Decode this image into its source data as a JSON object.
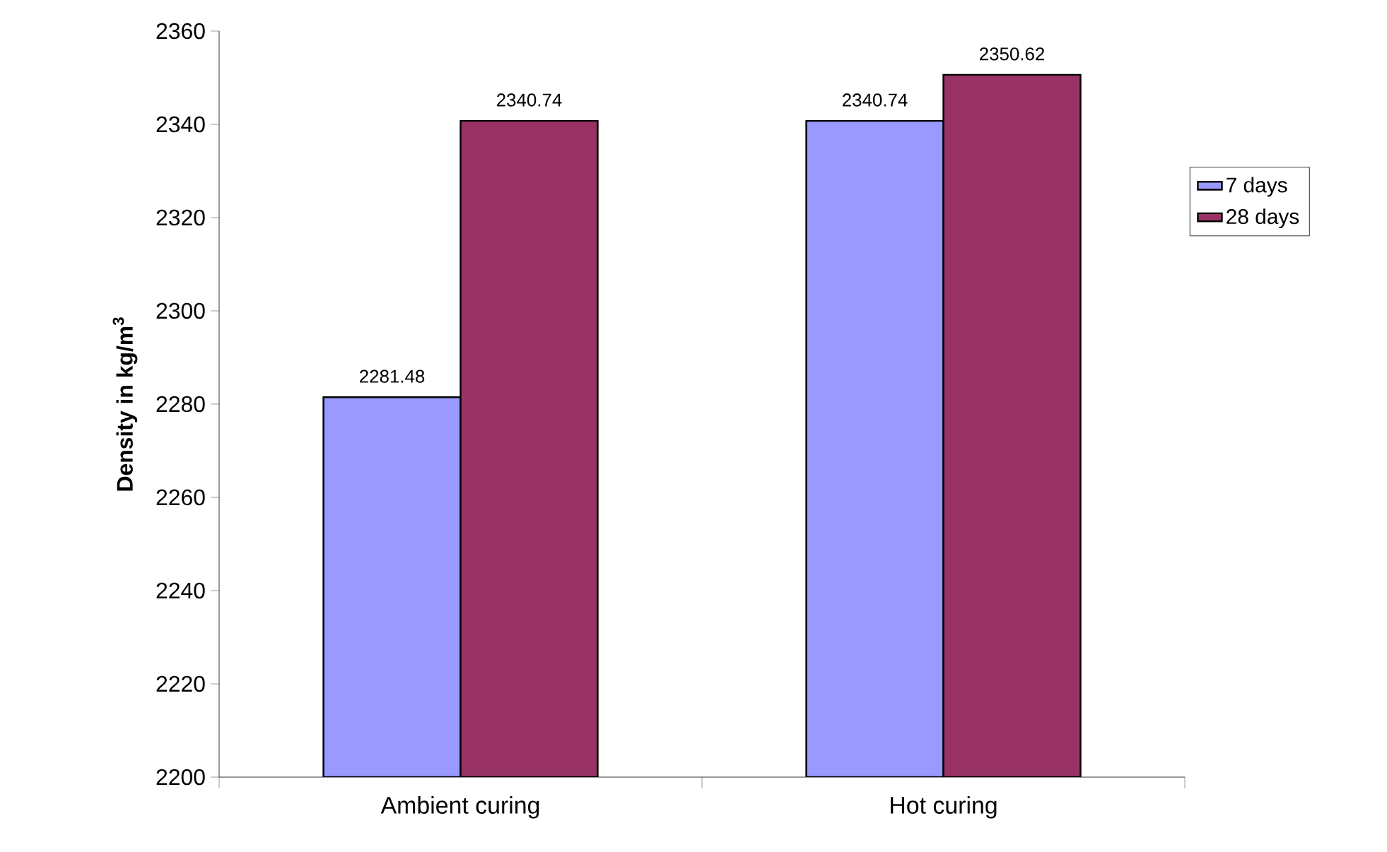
{
  "chart_data": {
    "type": "bar",
    "ylabel": "Density in kg/m$^{3}$",
    "categories": [
      "Ambient curing",
      "Hot curing"
    ],
    "series": [
      {
        "name": "7 days",
        "color": "#9999ff",
        "values": [
          2281.48,
          2340.74
        ]
      },
      {
        "name": "28 days",
        "color": "#993366",
        "values": [
          2340.74,
          2350.62
        ]
      }
    ],
    "ylim": [
      2200,
      2360
    ],
    "yticks": [
      2200,
      2220,
      2240,
      2260,
      2280,
      2300,
      2320,
      2340,
      2360
    ],
    "data_labels": true,
    "legend": "right",
    "grid": false
  }
}
